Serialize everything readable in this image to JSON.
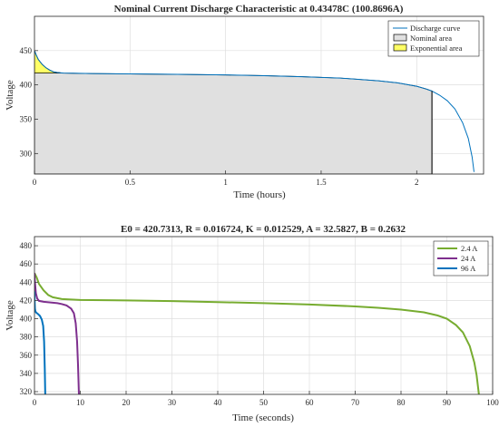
{
  "colors": {
    "discharge": "#0072BD",
    "nominal_fill": "#e0e0e0",
    "exponential_fill": "#ffff66",
    "green": "#77AC30",
    "purple": "#7E2F8E",
    "blue": "#0072BD"
  },
  "chart_data": [
    {
      "type": "area",
      "title": "Nominal Current Discharge Characteristic at 0.43478C (100.8696A)",
      "xlabel": "Time (hours)",
      "ylabel": "Voltage",
      "xlim": [
        0,
        2.35
      ],
      "ylim": [
        270,
        500
      ],
      "xticks": [
        0,
        0.5,
        1,
        1.5,
        2
      ],
      "xtick_labels": [
        "0",
        "0.5",
        "1",
        "1.5",
        "2"
      ],
      "yticks": [
        300,
        350,
        400,
        450
      ],
      "ytick_labels": [
        "300",
        "350",
        "400",
        "450"
      ],
      "grid": true,
      "legend_position": "top-right",
      "legend": [
        "Discharge curve",
        "Nominal area",
        "Exponential area"
      ],
      "series": [
        {
          "name": "Discharge curve",
          "x": [
            0,
            0.01,
            0.02,
            0.04,
            0.06,
            0.08,
            0.1,
            0.12,
            0.15,
            0.2,
            0.3,
            0.5,
            0.7,
            1.0,
            1.2,
            1.4,
            1.6,
            1.8,
            1.9,
            2.0,
            2.05,
            2.08,
            2.12,
            2.16,
            2.2,
            2.24,
            2.27,
            2.29,
            2.3
          ],
          "y": [
            450,
            443,
            437,
            430,
            425,
            421.5,
            419,
            418,
            417.2,
            417,
            416.5,
            416,
            415.5,
            414.5,
            413.5,
            412,
            410,
            406,
            403,
            398,
            394,
            391,
            385,
            377,
            365,
            345,
            322,
            295,
            273
          ]
        }
      ],
      "areas": [
        {
          "name": "Nominal area",
          "x_end": 2.08
        },
        {
          "name": "Exponential area",
          "x_end": 0.15
        }
      ]
    },
    {
      "type": "line",
      "title": "E0 = 420.7313, R = 0.016724, K = 0.012529, A = 32.5827, B = 0.2632",
      "xlabel": "Time (seconds)",
      "ylabel": "Voltage",
      "xlim": [
        0,
        100
      ],
      "ylim": [
        317,
        490
      ],
      "xticks": [
        0,
        10,
        20,
        30,
        40,
        50,
        60,
        70,
        80,
        90,
        100
      ],
      "xtick_labels": [
        "0",
        "10",
        "20",
        "30",
        "40",
        "50",
        "60",
        "70",
        "80",
        "90",
        "100"
      ],
      "yticks": [
        320,
        340,
        360,
        380,
        400,
        420,
        440,
        460,
        480
      ],
      "ytick_labels": [
        "320",
        "340",
        "360",
        "380",
        "400",
        "420",
        "440",
        "460",
        "480"
      ],
      "grid": true,
      "legend_position": "top-right",
      "series": [
        {
          "name": "2.4 A",
          "x": [
            0,
            0.5,
            1,
            2,
            3,
            4,
            6,
            10,
            20,
            30,
            40,
            50,
            60,
            70,
            75,
            80,
            85,
            88,
            90,
            92,
            93.5,
            95,
            96,
            96.5,
            97
          ],
          "y": [
            450,
            445,
            438,
            431,
            426,
            423.5,
            421.5,
            420.5,
            420,
            419.3,
            418.2,
            417,
            415.5,
            413.5,
            412,
            410,
            407,
            403.5,
            400,
            393,
            385,
            370,
            352,
            338,
            317
          ]
        },
        {
          "name": "24 A",
          "x": [
            0,
            0.1,
            0.3,
            0.6,
            1,
            2,
            3,
            4,
            5,
            6,
            7,
            8,
            8.6,
            9,
            9.3,
            9.5,
            9.7
          ],
          "y": [
            450,
            440,
            428,
            422,
            419.5,
            418.5,
            418,
            417.5,
            417,
            416,
            414.5,
            411,
            406,
            395,
            375,
            350,
            317
          ]
        },
        {
          "name": "96 A",
          "x": [
            0,
            0.05,
            0.1,
            0.2,
            0.4,
            0.8,
            1.2,
            1.6,
            1.9,
            2.1,
            2.25,
            2.35
          ],
          "y": [
            430,
            418,
            411,
            408,
            406.5,
            405,
            403,
            399,
            392,
            375,
            345,
            317
          ]
        }
      ]
    }
  ]
}
